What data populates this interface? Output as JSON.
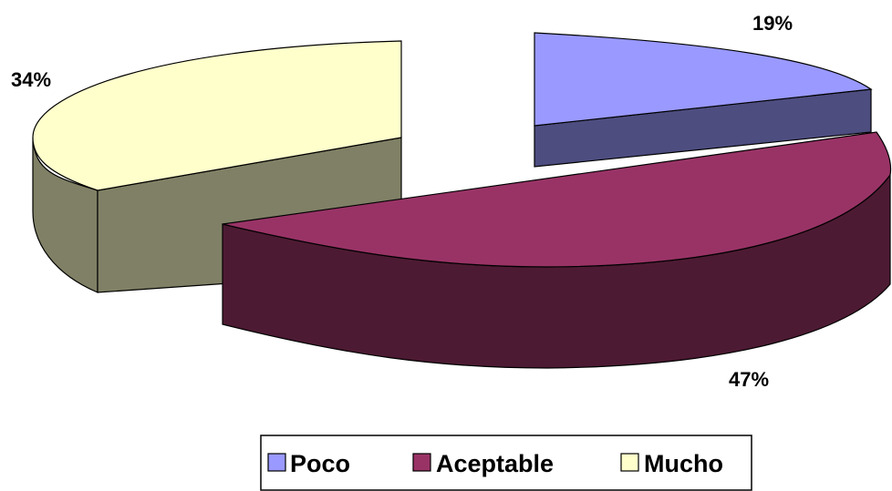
{
  "chart_data": {
    "type": "pie",
    "style": "3d-exploded",
    "slices": [
      {
        "label": "Poco",
        "value": 19,
        "display": "19%",
        "color": "#9999ff",
        "side_color": "#4d4d80"
      },
      {
        "label": "Aceptable",
        "value": 47,
        "display": "47%",
        "color": "#993366",
        "side_color": "#4d1a33"
      },
      {
        "label": "Mucho",
        "value": 34,
        "display": "34%",
        "color": "#ffffcc",
        "side_color": "#808066"
      }
    ],
    "legend": {
      "position": "bottom",
      "items": [
        "Poco",
        "Aceptable",
        "Mucho"
      ]
    }
  }
}
